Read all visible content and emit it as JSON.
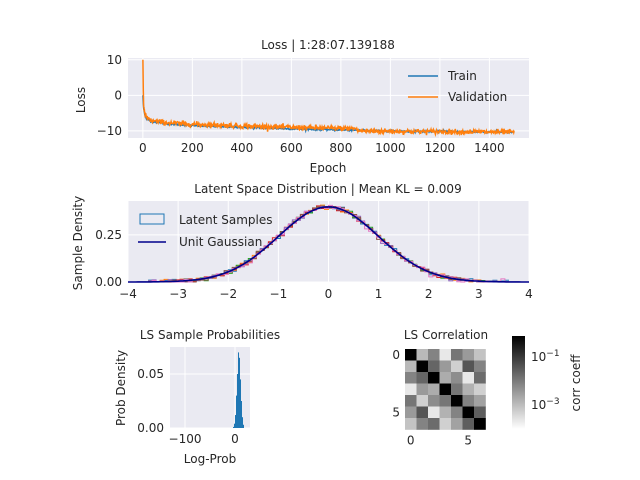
{
  "chart_data": [
    {
      "type": "line",
      "title": "Loss | 1:28:07.139188",
      "xlabel": "Epoch",
      "ylabel": "Loss",
      "xlim": [
        -60,
        1560
      ],
      "ylim": [
        -12,
        10.5
      ],
      "xticks": [
        0,
        200,
        400,
        600,
        800,
        1000,
        1200,
        1400
      ],
      "xtick_labels": [
        "0",
        "200",
        "400",
        "600",
        "800",
        "1000",
        "1200",
        "1400"
      ],
      "yticks": [
        10,
        0,
        -10
      ],
      "ytick_labels": [
        "10",
        "0",
        "−10"
      ],
      "grid": true,
      "legend": "upper-right",
      "series": [
        {
          "name": "Train",
          "color": "#1f77b4",
          "x": [
            0,
            3,
            8,
            15,
            30,
            60,
            100,
            200,
            400,
            600,
            800,
            1000,
            1200,
            1400,
            1500
          ],
          "y": [
            0,
            -3.5,
            -5.5,
            -6.5,
            -7.2,
            -7.6,
            -8.0,
            -8.5,
            -9.0,
            -9.4,
            -9.7,
            -10.1,
            -10.2,
            -10.3,
            -10.4
          ]
        },
        {
          "name": "Validation",
          "color": "#ff7f0e",
          "x": [
            0,
            3,
            8,
            15,
            30,
            60,
            100,
            200,
            400,
            600,
            800,
            860,
            870,
            1000,
            1200,
            1400,
            1500
          ],
          "y": [
            10,
            -3.0,
            -5.2,
            -6.3,
            -7.0,
            -7.4,
            -7.7,
            -8.1,
            -8.6,
            -9.0,
            -9.3,
            -9.3,
            -10.0,
            -10.1,
            -10.2,
            -10.3,
            -10.3
          ]
        }
      ]
    },
    {
      "type": "area",
      "title": "Latent Space Distribution | Mean KL = 0.009",
      "xlabel": "",
      "ylabel": "Sample Density",
      "xlim": [
        -4,
        4
      ],
      "ylim": [
        0,
        0.43
      ],
      "xticks": [
        -4,
        -3,
        -2,
        -1,
        0,
        1,
        2,
        3,
        4
      ],
      "xtick_labels": [
        "−4",
        "−3",
        "−2",
        "−1",
        "0",
        "1",
        "2",
        "3",
        "4"
      ],
      "yticks": [
        0,
        0.25
      ],
      "ytick_labels": [
        "0.00",
        "0.25"
      ],
      "grid": true,
      "legend": "upper-left",
      "series": [
        {
          "name": "Latent Samples",
          "color": "#1f77b4",
          "kind": "step-histogram"
        },
        {
          "name": "Unit Gaussian",
          "color": "#00008b",
          "kind": "line",
          "mean": 0,
          "std": 1
        }
      ],
      "histogram_colors": [
        "#1f77b4",
        "#ff7f0e",
        "#2ca02c",
        "#d62728",
        "#9467bd",
        "#8c564b",
        "#e377c2"
      ]
    },
    {
      "type": "bar",
      "title": "LS Sample Probabilities",
      "xlabel": "Log-Prob",
      "ylabel": "Prob Density",
      "xlim": [
        -130,
        30
      ],
      "ylim": [
        0,
        0.075
      ],
      "xticks": [
        -100,
        0
      ],
      "xtick_labels": [
        "−100",
        "0"
      ],
      "yticks": [
        0,
        0.05
      ],
      "ytick_labels": [
        "0.00",
        "0.05"
      ],
      "grid": true,
      "color": "#1f77b4",
      "bins_x": [
        -4,
        -2,
        0,
        2,
        4,
        6,
        8,
        10,
        12,
        14,
        16
      ],
      "bins_y": [
        0.001,
        0.004,
        0.012,
        0.03,
        0.05,
        0.07,
        0.065,
        0.045,
        0.025,
        0.01,
        0.003
      ]
    },
    {
      "type": "heatmap",
      "title": "LS Correlation",
      "xlabel": "",
      "ylabel": "",
      "xticks": [
        0,
        5
      ],
      "xtick_labels": [
        "0",
        "5"
      ],
      "yticks": [
        0,
        5
      ],
      "ytick_labels": [
        "0",
        "5"
      ],
      "colorbar_label": "corr coeff",
      "colorbar_ticks": [
        "10",
        "10"
      ],
      "colorbar_exponents": [
        "−1",
        "−3"
      ],
      "colormap": "gray_r log",
      "matrix": [
        [
          1.0,
          0.004,
          0.02,
          0.001,
          0.03,
          0.01,
          0.003
        ],
        [
          0.004,
          1.0,
          0.05,
          0.01,
          0.002,
          0.08,
          0.02
        ],
        [
          0.02,
          0.05,
          1.0,
          0.006,
          0.015,
          0.001,
          0.04
        ],
        [
          0.001,
          0.01,
          0.006,
          1.0,
          0.03,
          0.005,
          0.002
        ],
        [
          0.03,
          0.002,
          0.015,
          0.03,
          1.0,
          0.02,
          0.008
        ],
        [
          0.01,
          0.08,
          0.001,
          0.005,
          0.02,
          1.0,
          0.06
        ],
        [
          0.003,
          0.02,
          0.04,
          0.002,
          0.008,
          0.06,
          1.0
        ]
      ]
    }
  ]
}
